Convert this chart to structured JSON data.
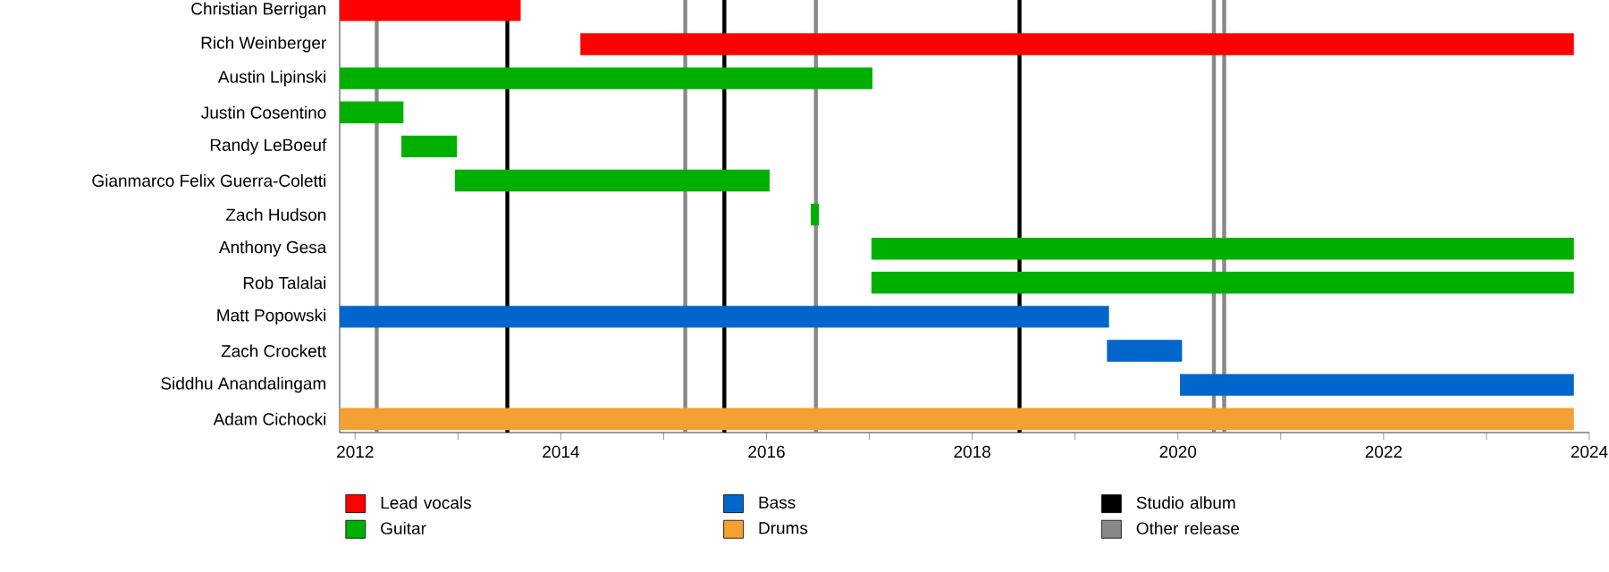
{
  "chart_data": {
    "type": "bar",
    "orientation": "horizontal",
    "legend": "bottom",
    "categories": [
      "Christian Berrigan",
      "Rich Weinberger",
      "Austin Lipinski",
      "Justin Cosentino",
      "Randy LeBoeuf",
      "Gianmarco Felix Guerra-Coletti",
      "Zach Hudson",
      "Anthony Gesa",
      "Rob Talalai",
      "Matt Popowski",
      "Zach Crockett",
      "Siddhu Anandalingam",
      "Adam Cichocki"
    ],
    "series": [
      {
        "name": "Lead vocals",
        "color": "#ff0000",
        "base": [
          2011.85,
          2014.19,
          null,
          null,
          null,
          null,
          null,
          null,
          null,
          null,
          null,
          null,
          null
        ],
        "values": [
          1.76,
          9.66,
          null,
          null,
          null,
          null,
          null,
          null,
          null,
          null,
          null,
          null,
          null
        ]
      },
      {
        "name": "Guitar",
        "color": "#00b000",
        "base": [
          null,
          null,
          2011.85,
          2011.85,
          2012.45,
          2012.97,
          2016.43,
          2017.02,
          2017.02,
          null,
          null,
          null,
          null
        ],
        "values": [
          null,
          null,
          5.18,
          0.62,
          0.54,
          3.06,
          0.08,
          6.83,
          6.83,
          null,
          null,
          null,
          null
        ]
      },
      {
        "name": "Bass",
        "color": "#0066cc",
        "base": [
          null,
          null,
          null,
          null,
          null,
          null,
          null,
          null,
          null,
          2011.85,
          2019.31,
          2020.02,
          null
        ],
        "values": [
          null,
          null,
          null,
          null,
          null,
          null,
          null,
          null,
          null,
          7.48,
          0.73,
          3.83,
          null
        ]
      },
      {
        "name": "Drums",
        "color": "#f4a033",
        "base": [
          null,
          null,
          null,
          null,
          null,
          null,
          null,
          null,
          null,
          null,
          null,
          null,
          2011.85
        ],
        "values": [
          null,
          null,
          null,
          null,
          null,
          null,
          null,
          null,
          null,
          null,
          null,
          null,
          12.0
        ]
      }
    ],
    "xlim": [
      2011.85,
      2024
    ],
    "xticks": [
      2012,
      {
        "value": 2013,
        "label": null
      },
      2014,
      {
        "value": 2015,
        "label": null
      },
      2016,
      {
        "value": 2017,
        "label": null
      },
      2018,
      {
        "value": 2019,
        "label": null
      },
      2020,
      {
        "value": 2021,
        "label": null
      },
      2022,
      {
        "value": 2023,
        "label": null
      },
      2024
    ],
    "ref_lines": [
      {
        "axis": "x",
        "value": 2012.21,
        "color": "#888888",
        "label": "Other release"
      },
      {
        "axis": "x",
        "value": 2013.48,
        "color": "#000000",
        "label": "Studio album"
      },
      {
        "axis": "x",
        "value": 2015.21,
        "color": "#888888"
      },
      {
        "axis": "x",
        "value": 2015.59,
        "color": "#000000"
      },
      {
        "axis": "x",
        "value": 2016.48,
        "color": "#888888"
      },
      {
        "axis": "x",
        "value": 2018.46,
        "color": "#000000"
      },
      {
        "axis": "x",
        "value": 2020.35,
        "color": "#888888"
      },
      {
        "axis": "x",
        "value": 2020.45,
        "color": "#888888"
      }
    ]
  }
}
